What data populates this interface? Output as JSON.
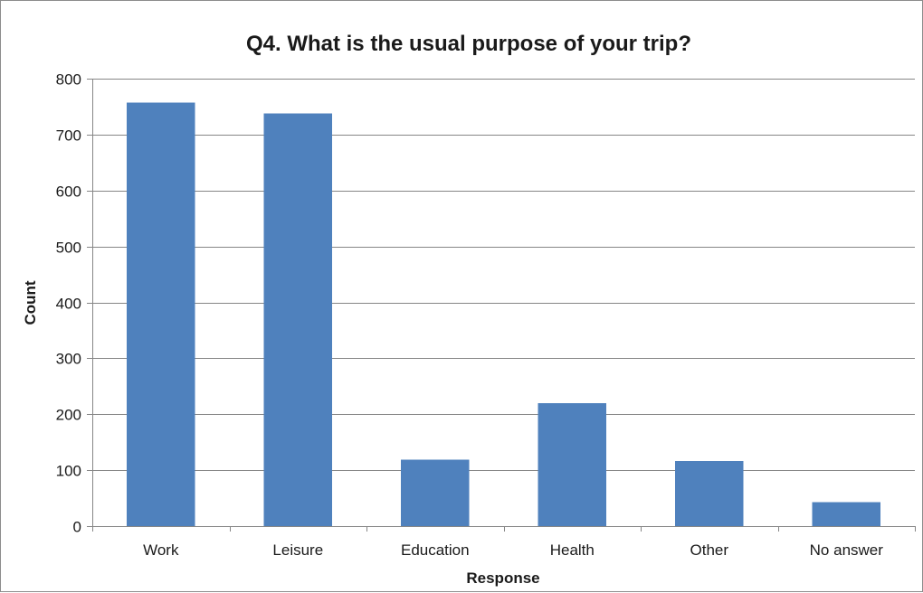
{
  "chart_data": {
    "type": "bar",
    "title": "Q4. What is the usual purpose of your trip?",
    "xlabel": "Response",
    "ylabel": "Count",
    "categories": [
      "Work",
      "Leisure",
      "Education",
      "Health",
      "Other",
      "No answer"
    ],
    "series": [
      {
        "values": [
          757,
          738,
          119,
          220,
          116,
          43
        ],
        "color": "#4f81bd"
      }
    ],
    "ylim": [
      0,
      800
    ],
    "yticks": [
      0,
      100,
      200,
      300,
      400,
      500,
      600,
      700,
      800
    ],
    "grid": true,
    "legend": "none"
  }
}
